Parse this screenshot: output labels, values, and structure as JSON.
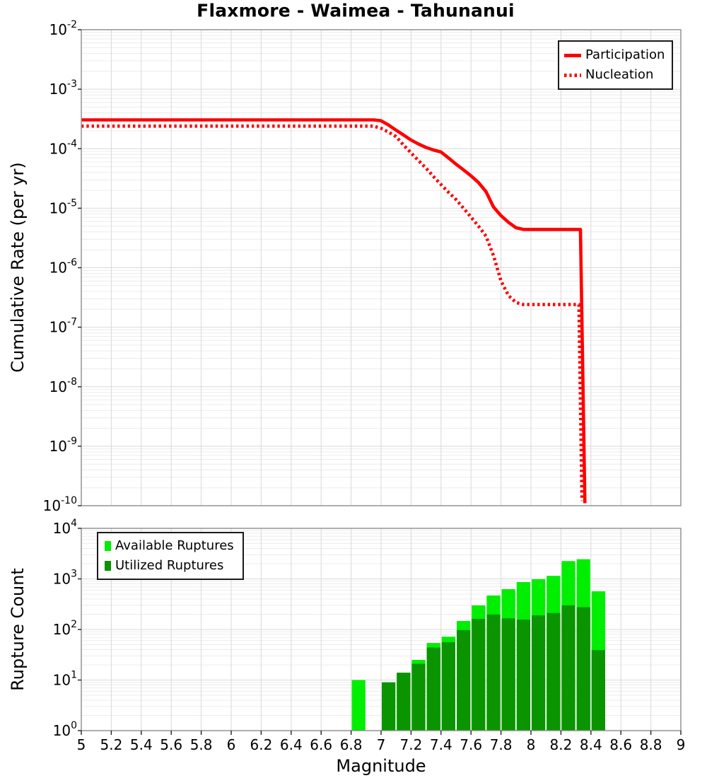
{
  "title": "Flaxmore - Waimea - Tahunanui",
  "top_plot": {
    "ylabel": "Cumulative Rate (per yr)",
    "legend": [
      "Participation",
      "Nucleation"
    ]
  },
  "bottom_plot": {
    "ylabel": "Rupture Count",
    "xlabel": "Magnitude",
    "legend": [
      "Available Ruptures",
      "Utilized Ruptures"
    ]
  },
  "colors": {
    "line_red": "#ff0000",
    "available_green": "#00ee00",
    "utilized_green": "#0a9400",
    "grid_major": "#d9d9d9",
    "grid_minor": "#ececec",
    "spine": "#8c8c8c",
    "tick": "#222222",
    "text": "#000000"
  },
  "chart_data": [
    {
      "type": "line",
      "title": "Flaxmore - Waimea - Tahunanui",
      "ylabel": "Cumulative Rate (per yr)",
      "xlim": [
        5,
        9
      ],
      "ylog_exp_range": [
        -10,
        -2
      ],
      "grid": true,
      "legend_position": "top-right",
      "xticks": {
        "values": [
          5,
          5.2,
          5.4,
          5.6,
          5.8,
          6,
          6.2,
          6.4,
          6.6,
          6.8,
          7,
          7.2,
          7.4,
          7.6,
          7.8,
          8,
          8.2,
          8.4,
          8.6,
          8.8,
          9
        ],
        "labels": [
          "5",
          "5.2",
          "5.4",
          "5.6",
          "5.8",
          "6",
          "6.2",
          "6.4",
          "6.6",
          "6.8",
          "7",
          "7.2",
          "7.4",
          "7.6",
          "7.8",
          "8",
          "8.2",
          "8.4",
          "8.6",
          "8.8",
          "9"
        ]
      },
      "series": [
        {
          "name": "Participation",
          "style": "solid",
          "color": "#ff0000",
          "points": [
            [
              5.0,
              0.000305
            ],
            [
              6.95,
              0.000305
            ],
            [
              7.0,
              0.000295
            ],
            [
              7.05,
              0.00025
            ],
            [
              7.1,
              0.000205
            ],
            [
              7.15,
              0.00017
            ],
            [
              7.2,
              0.00014
            ],
            [
              7.25,
              0.00012
            ],
            [
              7.3,
              0.000105
            ],
            [
              7.35,
              9.5e-05
            ],
            [
              7.4,
              8.8e-05
            ],
            [
              7.45,
              7e-05
            ],
            [
              7.5,
              5.5e-05
            ],
            [
              7.55,
              4.4e-05
            ],
            [
              7.6,
              3.5e-05
            ],
            [
              7.65,
              2.7e-05
            ],
            [
              7.7,
              1.9e-05
            ],
            [
              7.75,
              1.05e-05
            ],
            [
              7.8,
              7.5e-06
            ],
            [
              7.85,
              5.8e-06
            ],
            [
              7.9,
              4.7e-06
            ],
            [
              7.95,
              4.4e-06
            ],
            [
              8.33,
              4.4e-06
            ],
            [
              8.36,
              1.1e-10
            ]
          ]
        },
        {
          "name": "Nucleation",
          "style": "dotted",
          "color": "#ff0000",
          "points": [
            [
              5.0,
              0.00024
            ],
            [
              6.95,
              0.00024
            ],
            [
              7.0,
              0.00022
            ],
            [
              7.05,
              0.00019
            ],
            [
              7.1,
              0.00016
            ],
            [
              7.15,
              0.000115
            ],
            [
              7.2,
              8.5e-05
            ],
            [
              7.25,
              6.3e-05
            ],
            [
              7.3,
              4.7e-05
            ],
            [
              7.35,
              3.4e-05
            ],
            [
              7.4,
              2.5e-05
            ],
            [
              7.45,
              1.85e-05
            ],
            [
              7.5,
              1.4e-05
            ],
            [
              7.55,
              1e-05
            ],
            [
              7.6,
              7.1e-06
            ],
            [
              7.65,
              5e-06
            ],
            [
              7.7,
              3.4e-06
            ],
            [
              7.75,
              1.6e-06
            ],
            [
              7.8,
              6e-07
            ],
            [
              7.85,
              3.4e-07
            ],
            [
              7.9,
              2.6e-07
            ],
            [
              7.95,
              2.4e-07
            ],
            [
              8.32,
              2.4e-07
            ],
            [
              8.34,
              1.2e-10
            ]
          ]
        }
      ]
    },
    {
      "type": "bar",
      "ylabel": "Rupture Count",
      "xlabel": "Magnitude",
      "xlim": [
        5,
        9
      ],
      "ylog_exp_range": [
        0,
        4
      ],
      "grid": true,
      "legend_position": "top-left",
      "bin_width": 0.1,
      "xticks": {
        "values": [
          5,
          5.2,
          5.4,
          5.6,
          5.8,
          6,
          6.2,
          6.4,
          6.6,
          6.8,
          7,
          7.2,
          7.4,
          7.6,
          7.8,
          8,
          8.2,
          8.4,
          8.6,
          8.8,
          9
        ],
        "labels": [
          "5",
          "5.2",
          "5.4",
          "5.6",
          "5.8",
          "6",
          "6.2",
          "6.4",
          "6.6",
          "6.8",
          "7",
          "7.2",
          "7.4",
          "7.6",
          "7.8",
          "8",
          "8.2",
          "8.4",
          "8.6",
          "8.8",
          "9"
        ]
      },
      "series_names": [
        "Available Ruptures",
        "Utilized Ruptures"
      ],
      "bins": [
        {
          "m0": 6.8,
          "m1": 6.9,
          "available": 10,
          "utilized": 0
        },
        {
          "m0": 7.0,
          "m1": 7.1,
          "available": 9,
          "utilized": 9
        },
        {
          "m0": 7.1,
          "m1": 7.2,
          "available": 14,
          "utilized": 14
        },
        {
          "m0": 7.2,
          "m1": 7.3,
          "available": 25,
          "utilized": 21
        },
        {
          "m0": 7.3,
          "m1": 7.4,
          "available": 54,
          "utilized": 44
        },
        {
          "m0": 7.4,
          "m1": 7.5,
          "available": 72,
          "utilized": 56
        },
        {
          "m0": 7.5,
          "m1": 7.6,
          "available": 147,
          "utilized": 97
        },
        {
          "m0": 7.6,
          "m1": 7.7,
          "available": 300,
          "utilized": 162
        },
        {
          "m0": 7.7,
          "m1": 7.8,
          "available": 470,
          "utilized": 197
        },
        {
          "m0": 7.8,
          "m1": 7.9,
          "available": 626,
          "utilized": 166
        },
        {
          "m0": 7.9,
          "m1": 8.0,
          "available": 865,
          "utilized": 157
        },
        {
          "m0": 8.0,
          "m1": 8.1,
          "available": 985,
          "utilized": 190
        },
        {
          "m0": 8.1,
          "m1": 8.2,
          "available": 1150,
          "utilized": 212
        },
        {
          "m0": 8.2,
          "m1": 8.3,
          "available": 2250,
          "utilized": 300
        },
        {
          "m0": 8.3,
          "m1": 8.4,
          "available": 2450,
          "utilized": 277
        },
        {
          "m0": 8.4,
          "m1": 8.5,
          "available": 570,
          "utilized": 39
        }
      ]
    }
  ]
}
